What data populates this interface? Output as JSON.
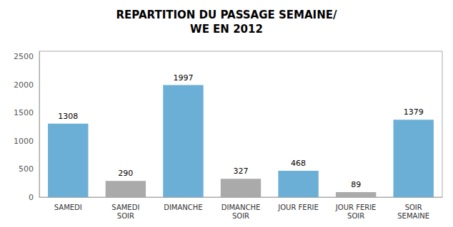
{
  "chart_data": {
    "type": "bar",
    "title": "REPARTITION DU PASSAGE SEMAINE/\nWE EN 2012",
    "categories": [
      "SAMEDI",
      "SAMEDI\nSOIR",
      "DIMANCHE",
      "DIMANCHE\nSOIR",
      "JOUR FERIE",
      "JOUR FERIE\nSOIR",
      "SOIR\nSEMAINE"
    ],
    "values": [
      1308,
      290,
      1997,
      327,
      468,
      89,
      1379
    ],
    "colors": [
      "#6BAED6",
      "#AAAAAA",
      "#6BAED6",
      "#AAAAAA",
      "#6BAED6",
      "#AAAAAA",
      "#6BAED6"
    ],
    "ylim": [
      0,
      2600
    ],
    "yticks": [
      0,
      500,
      1000,
      1500,
      2000,
      2500
    ],
    "grid": false,
    "data_labels": true
  }
}
